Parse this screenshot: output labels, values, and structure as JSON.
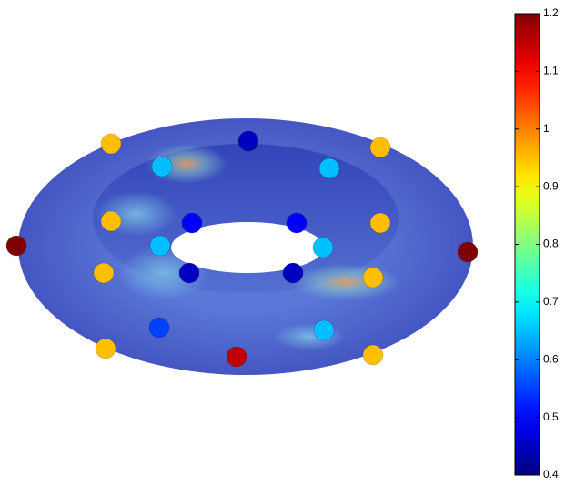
{
  "chart_data": {
    "type": "torus-points",
    "points": [
      0.95,
      0.45,
      0.95,
      0.65,
      0.65,
      0.95,
      0.5,
      0.5,
      0.95,
      1.2,
      0.65,
      0.65,
      1.2,
      0.95,
      0.45,
      0.45,
      0.95,
      0.55,
      0.65,
      0.95,
      1.15,
      0.95
    ],
    "colormap": "jet",
    "clim": [
      0.4,
      1.2
    ],
    "cticks": [
      0.4,
      0.5,
      0.6,
      0.7,
      0.8,
      0.9,
      1,
      1.1,
      1.2
    ]
  }
}
